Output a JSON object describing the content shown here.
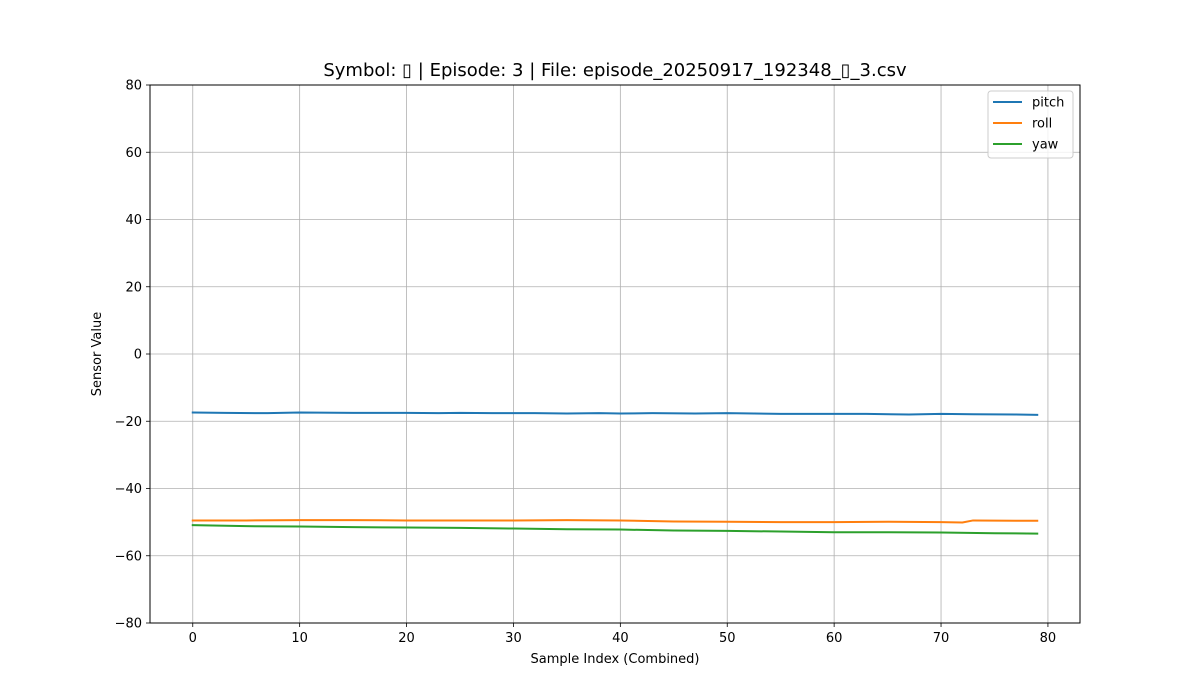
{
  "chart_data": {
    "type": "line",
    "title": "Symbol: ▯ | Episode: 3 | File: episode_20250917_192348_▯_3.csv",
    "xlabel": "Sample Index (Combined)",
    "ylabel": "Sensor Value",
    "xlim": [
      -4,
      83
    ],
    "ylim": [
      -80,
      80
    ],
    "xticks": [
      0,
      10,
      20,
      30,
      40,
      50,
      60,
      70,
      80
    ],
    "yticks": [
      -80,
      -60,
      -40,
      -20,
      0,
      20,
      40,
      60,
      80
    ],
    "grid": true,
    "legend_position": "top-right",
    "series": [
      {
        "name": "pitch",
        "color": "#1f77b4",
        "x": [
          0,
          3,
          7,
          10,
          15,
          20,
          23,
          25,
          28,
          32,
          35,
          38,
          40,
          43,
          47,
          50,
          55,
          60,
          63,
          67,
          70,
          73,
          77,
          79
        ],
        "y": [
          -17.4,
          -17.5,
          -17.6,
          -17.4,
          -17.5,
          -17.5,
          -17.6,
          -17.5,
          -17.6,
          -17.6,
          -17.7,
          -17.6,
          -17.7,
          -17.6,
          -17.7,
          -17.6,
          -17.8,
          -17.8,
          -17.8,
          -18.0,
          -17.8,
          -17.9,
          -18.0,
          -18.1
        ]
      },
      {
        "name": "roll",
        "color": "#ff7f0e",
        "x": [
          0,
          5,
          10,
          15,
          20,
          25,
          30,
          35,
          40,
          45,
          50,
          55,
          60,
          65,
          70,
          72,
          73,
          77,
          79
        ],
        "y": [
          -49.5,
          -49.5,
          -49.4,
          -49.4,
          -49.5,
          -49.5,
          -49.5,
          -49.4,
          -49.5,
          -49.8,
          -49.9,
          -50.0,
          -50.0,
          -49.9,
          -50.0,
          -50.1,
          -49.5,
          -49.6,
          -49.6
        ]
      },
      {
        "name": "yaw",
        "color": "#2ca02c",
        "x": [
          0,
          5,
          10,
          15,
          20,
          25,
          30,
          35,
          40,
          45,
          50,
          55,
          60,
          65,
          70,
          75,
          79
        ],
        "y": [
          -50.9,
          -51.2,
          -51.3,
          -51.5,
          -51.6,
          -51.7,
          -51.9,
          -52.1,
          -52.2,
          -52.5,
          -52.6,
          -52.8,
          -53.0,
          -53.0,
          -53.1,
          -53.3,
          -53.4
        ]
      }
    ]
  }
}
